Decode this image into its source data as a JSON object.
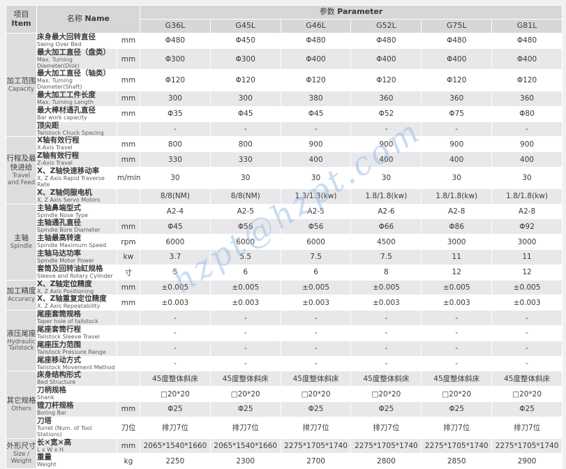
{
  "watermark": {
    "text": "hzpt@hzpt.com",
    "color": "#9fc0e6"
  },
  "colors": {
    "header_bg": "#d7d7d9",
    "group_col_bg": "#dedee0",
    "stripe_gray": "#e8e8ea",
    "stripe_white": "#ffffff",
    "watermark_blue": "#9fc0e6"
  },
  "table": {
    "header": {
      "item": {
        "zh": "项目",
        "en": "Item"
      },
      "name": {
        "zh": "名称",
        "en": "Name"
      },
      "parameter": {
        "zh": "参数",
        "en": "Parameter"
      },
      "models": [
        "G36L",
        "G45L",
        "G46L",
        "G52L",
        "G75L",
        "G81L"
      ]
    },
    "groups": [
      {
        "zh": "加工范围",
        "en": "Capacity",
        "rows": [
          {
            "zh": "床身最大回转直径",
            "en": "Swing Over Bed",
            "unit": "mm",
            "values": [
              "Φ480",
              "Φ450",
              "Φ480",
              "Φ480",
              "Φ480",
              "Φ480"
            ]
          },
          {
            "zh": "最大加工直径（盘类）",
            "en": "Max. Turning Diameter(Disk)",
            "unit": "mm",
            "values": [
              "Φ300",
              "Φ300",
              "Φ400",
              "Φ400",
              "Φ400",
              "Φ400"
            ]
          },
          {
            "zh": "最大加工直径（轴类）",
            "en": "Max. Turning Diameter(Shaft)",
            "unit": "mm",
            "values": [
              "Φ120",
              "Φ120",
              "Φ120",
              "Φ120",
              "Φ120",
              "Φ120"
            ]
          },
          {
            "zh": "最大加工工件长度",
            "en": "Max. Turning Length",
            "unit": "mm",
            "values": [
              "300",
              "300",
              "380",
              "360",
              "360",
              "360"
            ]
          },
          {
            "zh": "最大棒材通孔直径",
            "en": "Bar work capacity",
            "unit": "mm",
            "values": [
              "Φ35",
              "Φ45",
              "Φ45",
              "Φ52",
              "Φ75",
              "Φ80"
            ]
          },
          {
            "zh": "顶尖距",
            "en": "Tailstock Chuck Spacing",
            "unit": "",
            "values": [
              "-",
              "-",
              "-",
              "-",
              "-",
              "-"
            ]
          }
        ]
      },
      {
        "zh": "行程及最快进给",
        "en": "Travel and Feed",
        "rows": [
          {
            "zh": "X轴有效行程",
            "en": "X-Axis Travel",
            "unit": "mm",
            "values": [
              "800",
              "800",
              "900",
              "900",
              "900",
              "900"
            ]
          },
          {
            "zh": "Z轴有效行程",
            "en": "Z-Axis Travel",
            "unit": "mm",
            "values": [
              "330",
              "330",
              "400",
              "400",
              "400",
              "400"
            ]
          },
          {
            "zh": "X、Z轴快速移动率",
            "en": "X, Z Axis Rapid Traverse Rate",
            "unit": "m/min",
            "values": [
              "30",
              "30",
              "30",
              "30",
              "30",
              "30"
            ]
          },
          {
            "zh": "X、Z轴伺服电机",
            "en": "X, Z Axis Servo Motors",
            "unit": "",
            "values": [
              "8/8(NM)",
              "8/8(NM)",
              "1.3/1.3(kw)",
              "1.8/1.8(kw)",
              "1.8/1.8(kw)",
              "1.8/1.8(kw)"
            ]
          }
        ]
      },
      {
        "zh": "主轴",
        "en": "Spindle",
        "rows": [
          {
            "zh": "主轴鼻端型式",
            "en": "Spindle Nose Type",
            "unit": "",
            "values": [
              "A2-4",
              "A2-5",
              "A2-5",
              "A2-6",
              "A2-8",
              "A2-8"
            ]
          },
          {
            "zh": "主轴通孔直径",
            "en": "Spindle Bore Diameter",
            "unit": "mm",
            "values": [
              "Φ45",
              "Φ56",
              "Φ56",
              "Φ66",
              "Φ86",
              "Φ92"
            ]
          },
          {
            "zh": "主轴最高转速",
            "en": "Spindle Maximum Speed",
            "unit": "rpm",
            "values": [
              "6000",
              "6000",
              "6000",
              "4500",
              "3000",
              "3000"
            ]
          },
          {
            "zh": "主轴马达功率",
            "en": "Spindle Motor Power",
            "unit": "kw",
            "values": [
              "3.7",
              "5.5",
              "7.5",
              "7.5",
              "11",
              "11"
            ]
          },
          {
            "zh": "套筒及回转油缸规格",
            "en": "Sleeve and Rotary Cylinder",
            "unit": "寸",
            "values": [
              "5",
              "6",
              "6",
              "8",
              "12",
              "12"
            ]
          }
        ]
      },
      {
        "zh": "加工精度",
        "en": "Accuracy",
        "rows": [
          {
            "zh": "X、Z轴定位精度",
            "en": "X, Z Axis Positioning",
            "unit": "mm",
            "values": [
              "±0.005",
              "±0.005",
              "±0.005",
              "±0.005",
              "±0.005",
              "±0.005"
            ]
          },
          {
            "zh": "X、Z轴重复定位精度",
            "en": "X, Z Axis Repeatability",
            "unit": "mm",
            "values": [
              "±0.003",
              "±0.003",
              "±0.003",
              "±0.003",
              "±0.003",
              "±0.003"
            ]
          }
        ]
      },
      {
        "zh": "液压尾座",
        "en": "Hydraulic Tailstock",
        "rows": [
          {
            "zh": "尾座套筒规格",
            "en": "Taper hole of tailstock",
            "unit": "",
            "values": [
              "-",
              "-",
              "-",
              "-",
              "-",
              "-"
            ]
          },
          {
            "zh": "尾座套筒行程",
            "en": "Tailstock Sleeve Travel",
            "unit": "",
            "values": [
              "-",
              "-",
              "-",
              "-",
              "-",
              "-"
            ]
          },
          {
            "zh": "尾座压力范围",
            "en": "Tailstock Pressure Range",
            "unit": "",
            "values": [
              "-",
              "-",
              "-",
              "-",
              "-",
              "-"
            ]
          },
          {
            "zh": "尾座移动方式",
            "en": "Tailstock Movement Method",
            "unit": "",
            "values": [
              "-",
              "-",
              "-",
              "-",
              "-",
              "-"
            ]
          }
        ]
      },
      {
        "zh": "其它规格",
        "en": "Others",
        "rows": [
          {
            "zh": "床身结构形式",
            "en": "Bed Structure",
            "unit": "",
            "values": [
              "45度整体斜床",
              "45度整体斜床",
              "45度整体斜床",
              "45度整体斜床",
              "45度整体斜床",
              "45度整体斜床"
            ]
          },
          {
            "zh": "刀柄规格",
            "en": "Shank",
            "unit": "",
            "values": [
              "□20*20",
              "□20*20",
              "□20*20",
              "□20*20",
              "□20*20",
              "□20*20"
            ]
          },
          {
            "zh": "镗刀杆规格",
            "en": "Boring Bar",
            "unit": "mm",
            "values": [
              "Φ25",
              "Φ25",
              "Φ25",
              "Φ25",
              "Φ25",
              "Φ25"
            ]
          },
          {
            "zh": "刀塔",
            "en": "Turret (Num. of Tool Stations)",
            "unit": "刀位",
            "values": [
              "排刀7位",
              "排刀7位",
              "排刀7位",
              "排刀7位",
              "排刀7位",
              "排刀7位"
            ]
          }
        ]
      },
      {
        "zh": "外形尺寸",
        "en": "Size / Weight",
        "rows": [
          {
            "zh": "长×宽×高",
            "en": "L x W x H",
            "unit": "mm",
            "values": [
              "2065*1540*1660",
              "2065*1540*1660",
              "2275*1705*1740",
              "2275*1705*1740",
              "2275*1705*1740",
              "2275*1705*1740"
            ]
          },
          {
            "zh": "重量",
            "en": "Weight",
            "unit": "kg",
            "values": [
              "2250",
              "2300",
              "2700",
              "2800",
              "2850",
              "2900"
            ]
          }
        ]
      }
    ]
  }
}
